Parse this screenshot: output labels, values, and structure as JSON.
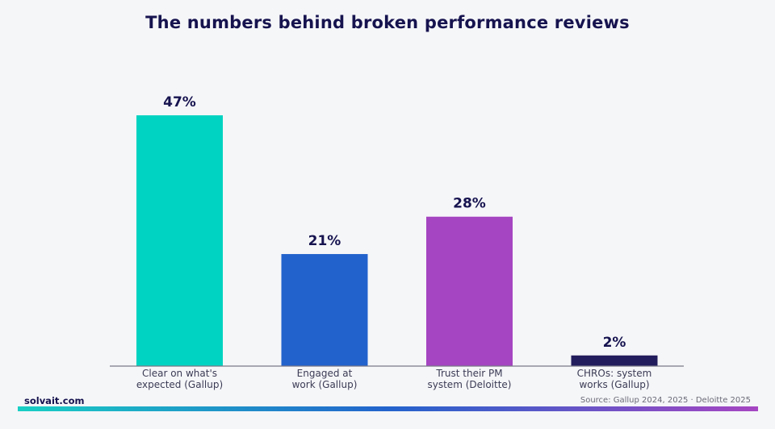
{
  "chart_data": {
    "type": "bar",
    "title": "The numbers behind broken performance reviews",
    "categories": [
      [
        "Clear on what's",
        "expected (Gallup)"
      ],
      [
        "Engaged at",
        "work (Gallup)"
      ],
      [
        "Trust their PM",
        "system (Deloitte)"
      ],
      [
        "CHROs: system",
        "works (Gallup)"
      ]
    ],
    "values": [
      47,
      21,
      28,
      2
    ],
    "value_labels": [
      "47%",
      "21%",
      "28%",
      "2%"
    ],
    "colors": [
      "#00d3c1",
      "#2262cc",
      "#a545c1",
      "#221d5c"
    ],
    "ylim": [
      0,
      47
    ],
    "grid": false,
    "legend": "none"
  },
  "footer": {
    "brand": "solvait.com",
    "source": "Source: Gallup 2024, 2025 · Deloitte 2025"
  }
}
